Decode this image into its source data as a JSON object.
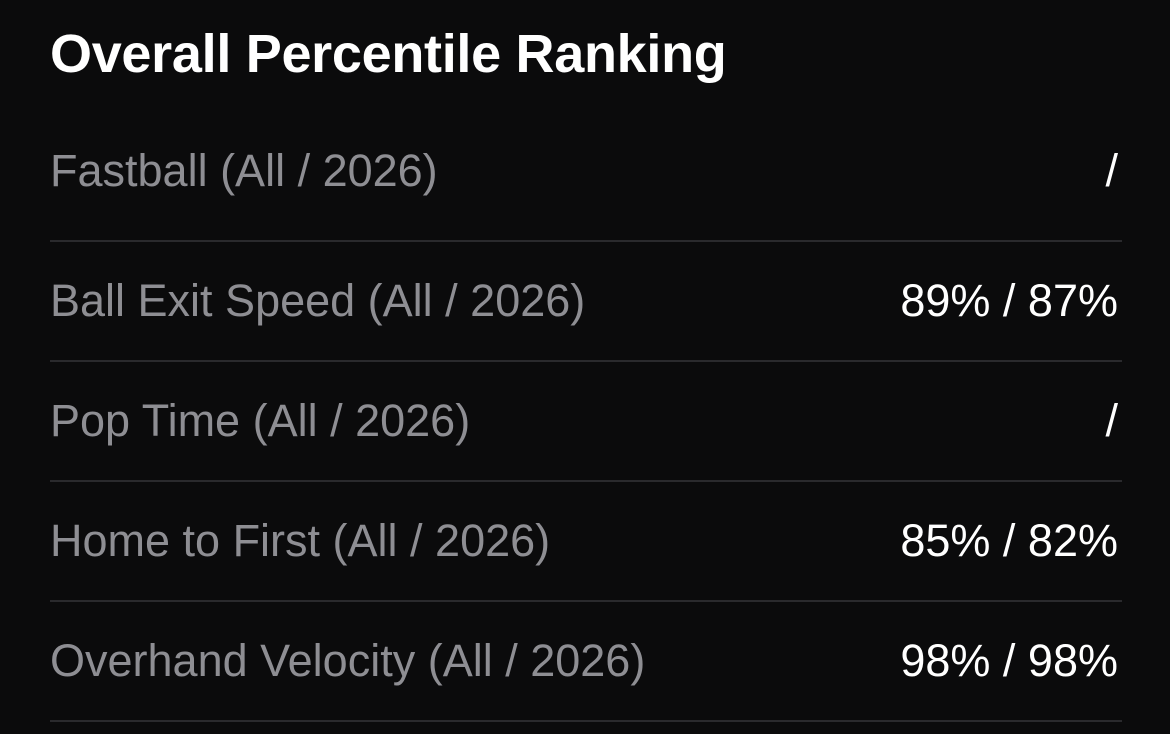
{
  "section": {
    "title": "Overall Percentile Ranking"
  },
  "rankings": [
    {
      "label": "Fastball (All / 2026)",
      "value": "/"
    },
    {
      "label": "Ball Exit Speed (All / 2026)",
      "value": "89% / 87%"
    },
    {
      "label": "Pop Time (All / 2026)",
      "value": "/"
    },
    {
      "label": "Home to First (All / 2026)",
      "value": "85% / 82%"
    },
    {
      "label": "Overhand Velocity (All / 2026)",
      "value": "98% / 98%"
    }
  ],
  "colors": {
    "background": "#0b0b0c",
    "title": "#ffffff",
    "label": "#8e8e93",
    "value": "#ffffff",
    "divider": "#2a2a2d"
  }
}
